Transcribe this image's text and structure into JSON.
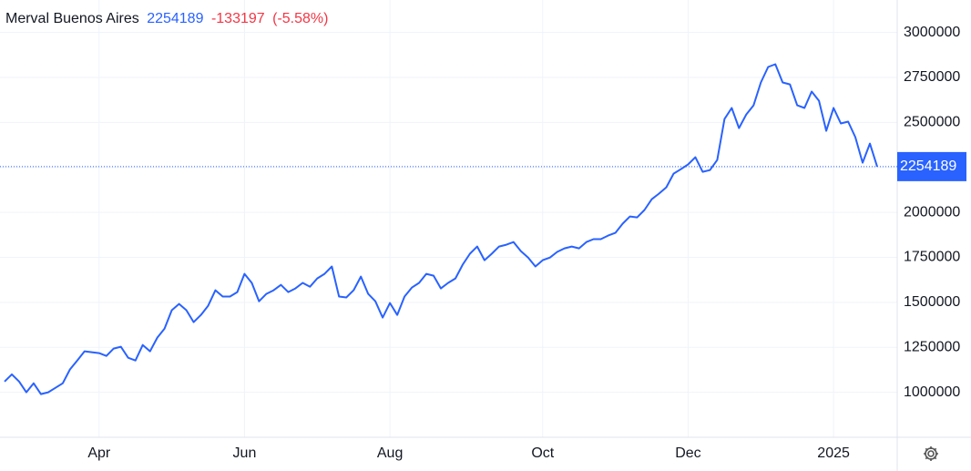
{
  "chart_data": {
    "type": "line",
    "title": "Merval Buenos Aires",
    "change": -133197,
    "change_pct_label": "(-5.58%)",
    "categories": [
      null,
      null,
      null,
      null,
      null,
      null,
      null,
      null,
      null,
      null,
      null,
      null,
      null,
      "Apr",
      null,
      null,
      null,
      null,
      null,
      null,
      null,
      null,
      null,
      null,
      null,
      null,
      null,
      null,
      null,
      null,
      null,
      null,
      null,
      "Jun",
      null,
      null,
      null,
      null,
      null,
      null,
      null,
      null,
      null,
      null,
      null,
      null,
      null,
      null,
      null,
      null,
      null,
      null,
      null,
      "Aug",
      null,
      null,
      null,
      null,
      null,
      null,
      null,
      null,
      null,
      null,
      null,
      null,
      null,
      null,
      null,
      null,
      null,
      null,
      null,
      null,
      "Oct",
      null,
      null,
      null,
      null,
      null,
      null,
      null,
      null,
      null,
      null,
      null,
      null,
      null,
      null,
      null,
      null,
      null,
      null,
      null,
      "Dec",
      null,
      null,
      null,
      null,
      null,
      null,
      null,
      null,
      null,
      null,
      null,
      null,
      null,
      null,
      null,
      null,
      null,
      null,
      null,
      "2025",
      null,
      null,
      null,
      null,
      null,
      null
    ],
    "series": [
      {
        "name": "Merval Buenos Aires",
        "color": "#2962ff",
        "values": [
          1060000,
          1100000,
          1060000,
          1000000,
          1050000,
          990000,
          1000000,
          1025000,
          1050000,
          1127000,
          1177000,
          1228000,
          1223000,
          1218000,
          1202000,
          1243000,
          1253000,
          1192000,
          1177000,
          1263000,
          1228000,
          1304000,
          1354000,
          1456000,
          1491000,
          1456000,
          1390000,
          1430000,
          1481000,
          1567000,
          1532000,
          1532000,
          1557000,
          1658000,
          1608000,
          1506000,
          1547000,
          1567000,
          1597000,
          1557000,
          1577000,
          1608000,
          1587000,
          1633000,
          1658000,
          1699000,
          1532000,
          1527000,
          1567000,
          1643000,
          1547000,
          1506000,
          1415000,
          1496000,
          1430000,
          1532000,
          1582000,
          1608000,
          1658000,
          1648000,
          1577000,
          1608000,
          1633000,
          1709000,
          1770000,
          1810000,
          1734000,
          1770000,
          1810000,
          1820000,
          1835000,
          1785000,
          1749000,
          1699000,
          1734000,
          1749000,
          1780000,
          1800000,
          1810000,
          1800000,
          1835000,
          1851000,
          1851000,
          1871000,
          1886000,
          1937000,
          1977000,
          1972000,
          2013000,
          2073000,
          2104000,
          2139000,
          2215000,
          2240000,
          2266000,
          2306000,
          2225000,
          2235000,
          2291000,
          2519000,
          2580000,
          2468000,
          2544000,
          2595000,
          2722000,
          2808000,
          2823000,
          2722000,
          2711000,
          2595000,
          2580000,
          2671000,
          2620000,
          2453000,
          2580000,
          2494000,
          2504000,
          2418000,
          2276000,
          2382000,
          2254189
        ]
      }
    ],
    "ylim": [
      750000,
      3180000
    ],
    "yticks": [
      1000000,
      1250000,
      1500000,
      1750000,
      2000000,
      2250000,
      2500000,
      2750000,
      3000000
    ],
    "grid": true
  }
}
